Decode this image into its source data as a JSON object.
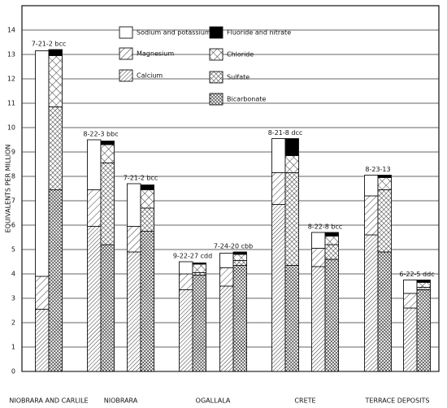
{
  "chart_data": {
    "type": "stacked-pair-bar",
    "y_label": "EQUIVALENTS PER MILLION",
    "categories": [
      "7-21-2 bcc",
      "8-22-3 bbc",
      "7-21-2 bcc",
      "9-22-27 cdd",
      "7-24-20 cbb",
      "8-21-8 dcc",
      "8-22-8 bcc",
      "8-23-13",
      "6-22-5 ddc"
    ],
    "category_groups": [
      "NIOBRARA AND CARLILE",
      "NIOBRARA",
      "NIOBRARA",
      "OGALLALA",
      "OGALLALA",
      "CRETE",
      "CRETE",
      "TERRACE DEPOSITS",
      "TERRACE DEPOSITS"
    ],
    "series": [
      {
        "name": "Calcium",
        "stack": "left",
        "pattern": "diag-dense",
        "values": [
          2.55,
          5.95,
          4.9,
          3.35,
          3.5,
          6.85,
          4.3,
          5.6,
          2.6
        ]
      },
      {
        "name": "Magnesium",
        "stack": "left",
        "pattern": "diag",
        "values": [
          1.35,
          1.5,
          1.05,
          0.65,
          0.75,
          1.3,
          0.75,
          1.6,
          0.6
        ]
      },
      {
        "name": "Sodium and potassium",
        "stack": "left",
        "pattern": "none",
        "values": [
          9.25,
          2.05,
          1.75,
          0.5,
          0.6,
          1.4,
          0.65,
          0.85,
          0.55
        ]
      },
      {
        "name": "Bicarbonate",
        "stack": "right",
        "pattern": "cross-fine",
        "values": [
          7.45,
          5.2,
          5.75,
          3.95,
          4.35,
          4.35,
          4.6,
          4.9,
          3.35
        ]
      },
      {
        "name": "Sulfate",
        "stack": "right",
        "pattern": "cross-dense",
        "values": [
          3.4,
          3.35,
          0.95,
          0.1,
          0.2,
          3.8,
          0.6,
          2.55,
          0.1
        ]
      },
      {
        "name": "Chloride",
        "stack": "right",
        "pattern": "cross",
        "values": [
          2.1,
          0.75,
          0.75,
          0.35,
          0.25,
          0.7,
          0.35,
          0.5,
          0.2
        ]
      },
      {
        "name": "Fluoride and nitrate",
        "stack": "right",
        "pattern": "solid",
        "values": [
          0.25,
          0.15,
          0.2,
          0.05,
          0.1,
          0.7,
          0.15,
          0.1,
          0.1
        ]
      }
    ],
    "ylim": [
      0,
      15
    ],
    "yticks": [
      0,
      1,
      2,
      3,
      4,
      5,
      6,
      7,
      8,
      9,
      10,
      11,
      12,
      13,
      14
    ],
    "grid": true
  }
}
